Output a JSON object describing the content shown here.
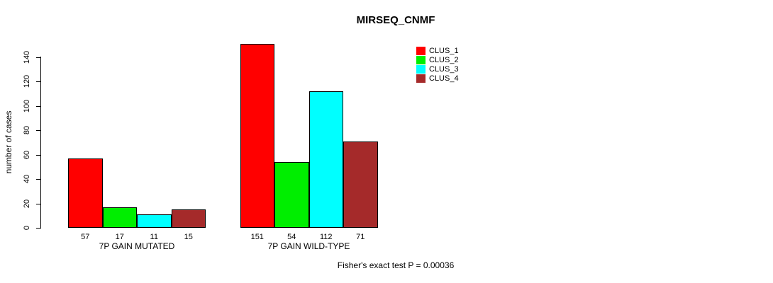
{
  "chart_data": {
    "type": "bar",
    "title": "MIRSEQ_CNMF",
    "ylabel": "number of cases",
    "xlabel": "",
    "ylim": [
      0,
      140
    ],
    "yticks": [
      0,
      20,
      40,
      60,
      80,
      100,
      120,
      140
    ],
    "grid": false,
    "legend_position": "top-right",
    "categories": [
      "7P GAIN MUTATED",
      "7P GAIN WILD-TYPE"
    ],
    "series": [
      {
        "name": "CLUS_1",
        "color": "#FF0000",
        "values": [
          57,
          151
        ]
      },
      {
        "name": "CLUS_2",
        "color": "#00EE00",
        "values": [
          17,
          54
        ]
      },
      {
        "name": "CLUS_3",
        "color": "#00FFFF",
        "values": [
          11,
          112
        ]
      },
      {
        "name": "CLUS_4",
        "color": "#A52A2A",
        "values": [
          15,
          71
        ]
      }
    ],
    "value_labels": [
      [
        57,
        17,
        11,
        15
      ],
      [
        151,
        54,
        112,
        71
      ]
    ],
    "footnote": "Fisher's exact test P = 0.00036"
  }
}
